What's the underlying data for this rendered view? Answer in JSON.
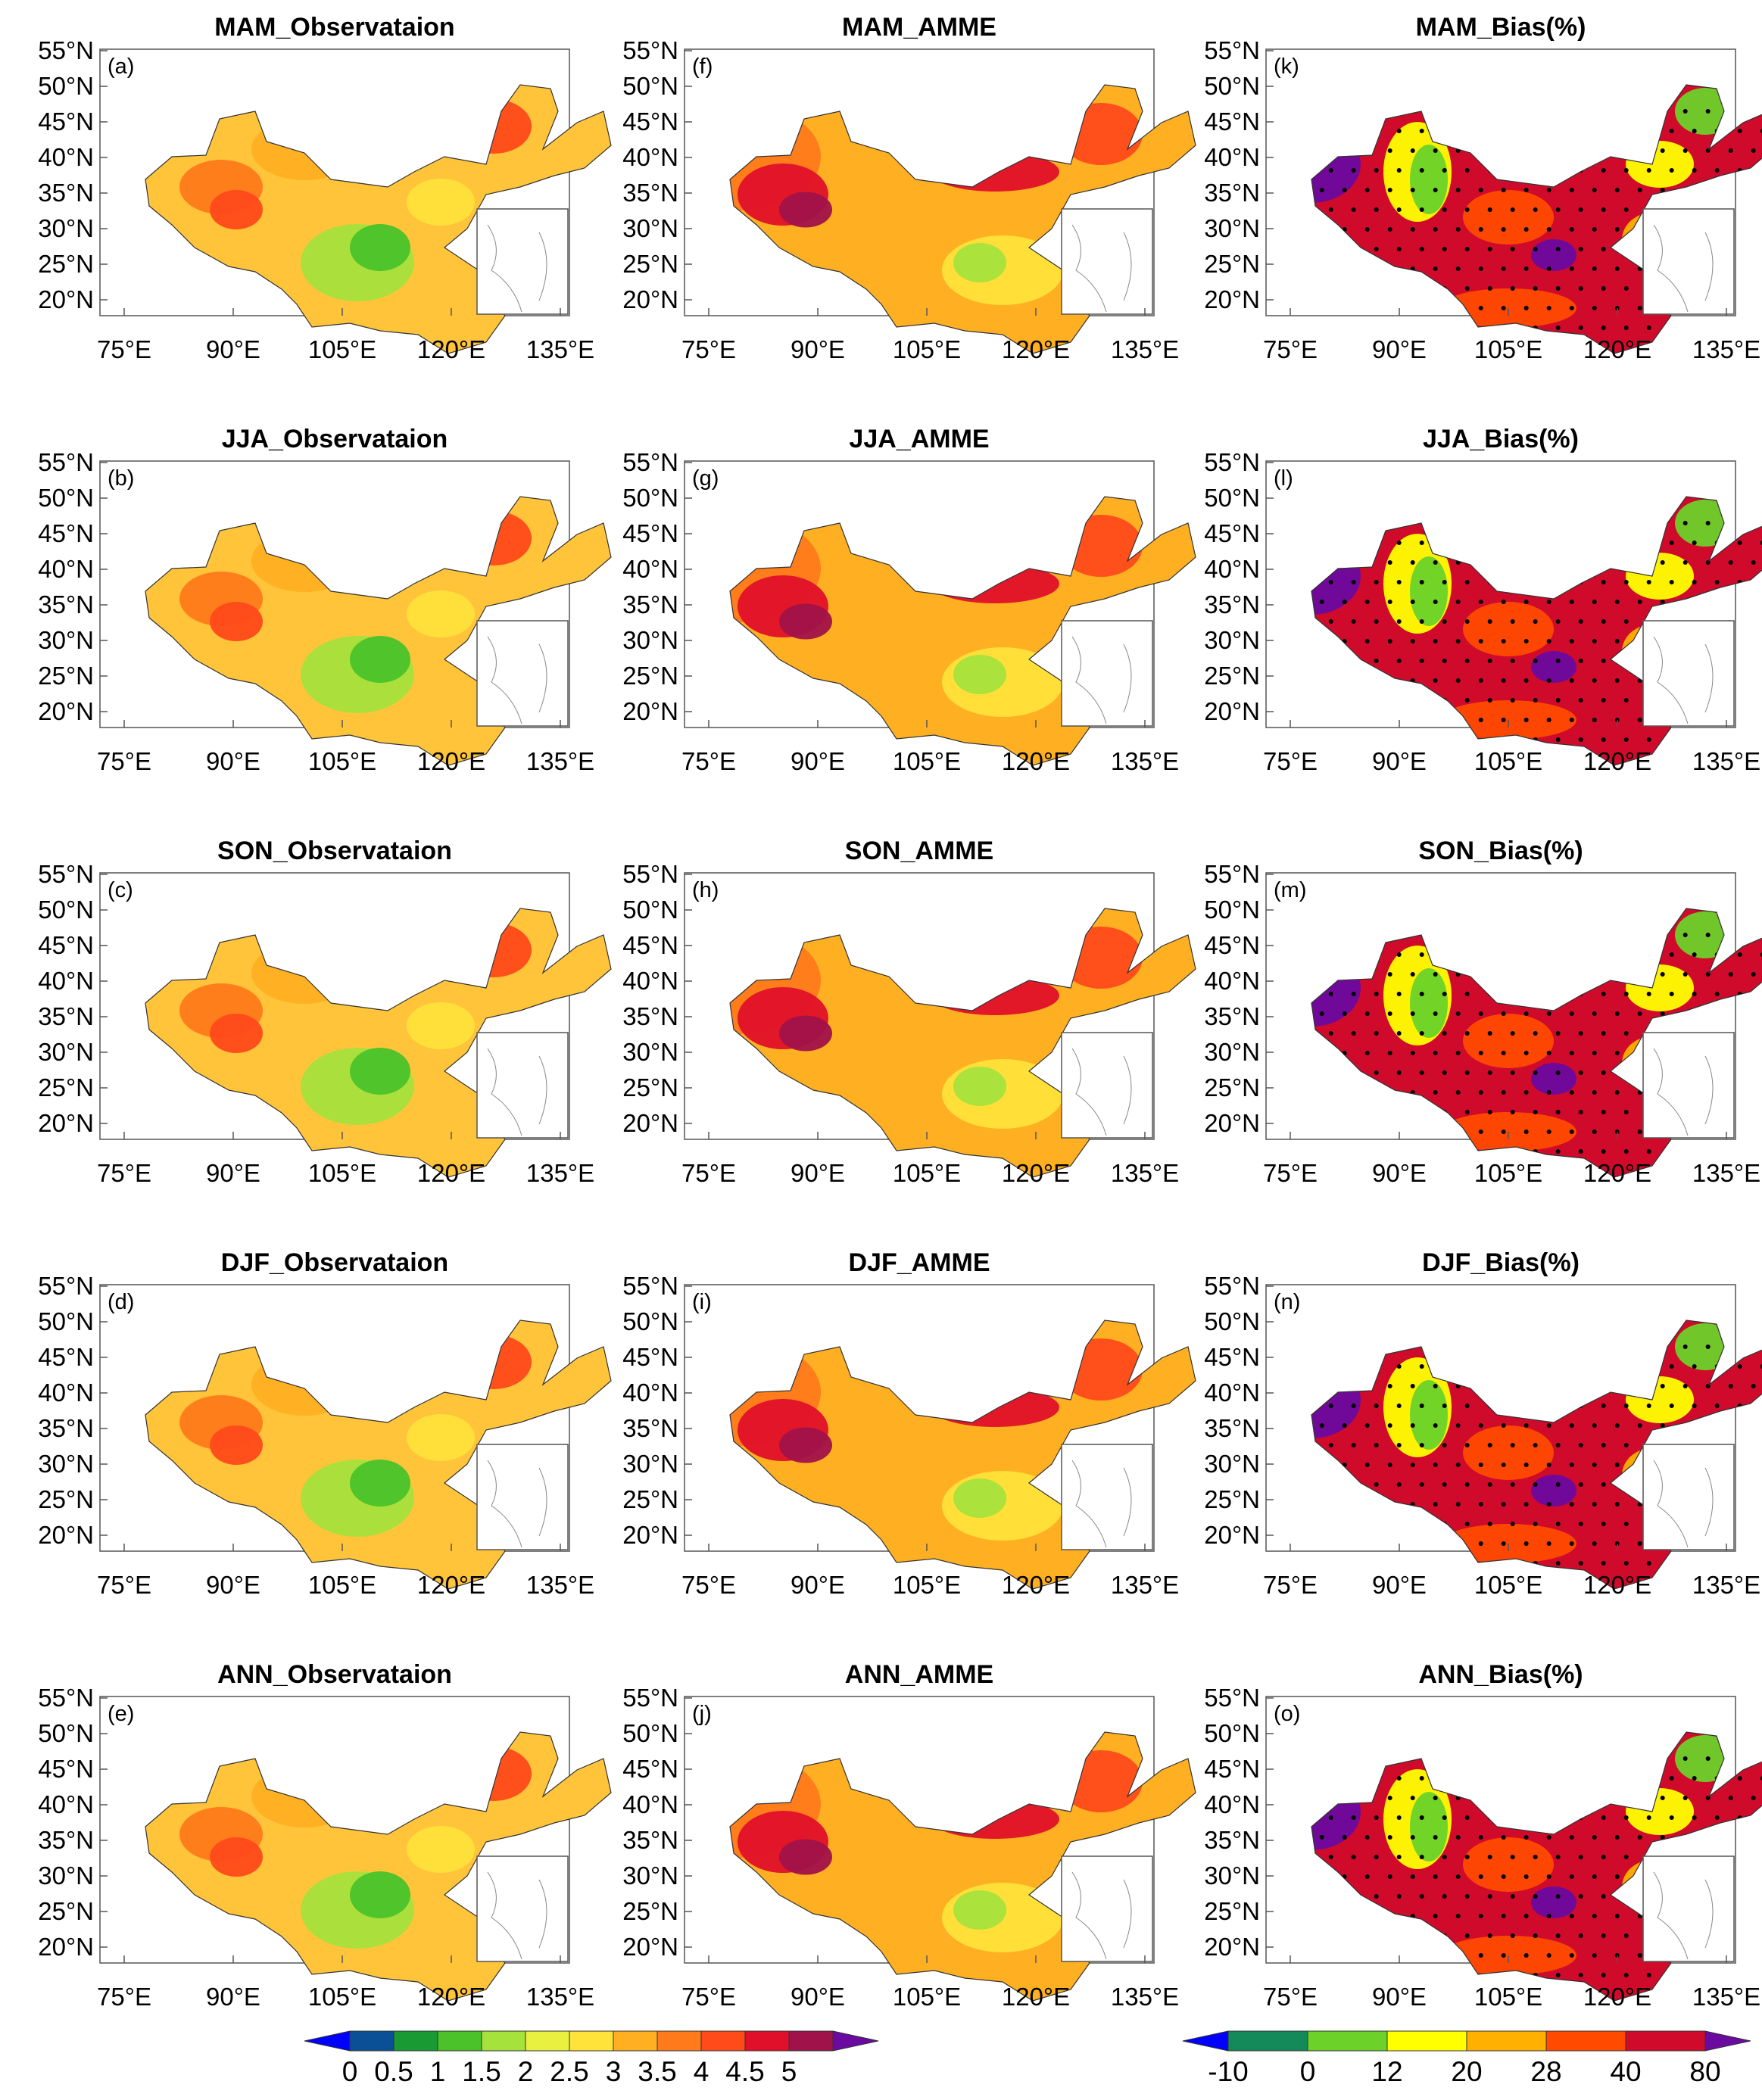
{
  "figure": {
    "longitude_ticks": [
      "75°E",
      "90°E",
      "105°E",
      "120°E",
      "135°E"
    ],
    "latitude_ticks": [
      "55°N",
      "50°N",
      "45°N",
      "40°N",
      "35°N",
      "30°N",
      "25°N",
      "20°N"
    ],
    "panels": [
      {
        "label": "(a)",
        "title": "MAM_Observataion",
        "kind": "obs"
      },
      {
        "label": "(f)",
        "title": "MAM_AMME",
        "kind": "model"
      },
      {
        "label": "(k)",
        "title": "MAM_Bias(%)",
        "kind": "bias"
      },
      {
        "label": "(b)",
        "title": "JJA_Observataion",
        "kind": "obs"
      },
      {
        "label": "(g)",
        "title": "JJA_AMME",
        "kind": "model"
      },
      {
        "label": "(l)",
        "title": "JJA_Bias(%)",
        "kind": "bias"
      },
      {
        "label": "(c)",
        "title": "SON_Observataion",
        "kind": "obs"
      },
      {
        "label": "(h)",
        "title": "SON_AMME",
        "kind": "model"
      },
      {
        "label": "(m)",
        "title": "SON_Bias(%)",
        "kind": "bias"
      },
      {
        "label": "(d)",
        "title": "DJF_Observataion",
        "kind": "obs"
      },
      {
        "label": "(i)",
        "title": "DJF_AMME",
        "kind": "model"
      },
      {
        "label": "(n)",
        "title": "DJF_Bias(%)",
        "kind": "bias"
      },
      {
        "label": "(e)",
        "title": "ANN_Observataion",
        "kind": "obs"
      },
      {
        "label": "(j)",
        "title": "ANN_AMME",
        "kind": "model"
      },
      {
        "label": "(o)",
        "title": "ANN_Bias(%)",
        "kind": "bias"
      }
    ]
  },
  "colorbars": {
    "value": {
      "labels": [
        "0",
        "0.5",
        "1",
        "1.5",
        "2",
        "2.5",
        "3",
        "3.5",
        "4",
        "4.5",
        "5"
      ],
      "colors": [
        "#0000ff",
        "#0a5096",
        "#1a9a32",
        "#4bc22a",
        "#a6e23c",
        "#e8f040",
        "#ffe23a",
        "#ffb022",
        "#ff7a1a",
        "#ff4a1a",
        "#e0102a",
        "#a0124a",
        "#6a0aa0"
      ]
    },
    "bias": {
      "labels": [
        "-10",
        "0",
        "12",
        "20",
        "28",
        "40",
        "80"
      ],
      "colors": [
        "#0000ff",
        "#148a5a",
        "#6cd22a",
        "#ffff00",
        "#ffb000",
        "#ff4a00",
        "#d00a2a",
        "#6a0aa0"
      ]
    }
  }
}
